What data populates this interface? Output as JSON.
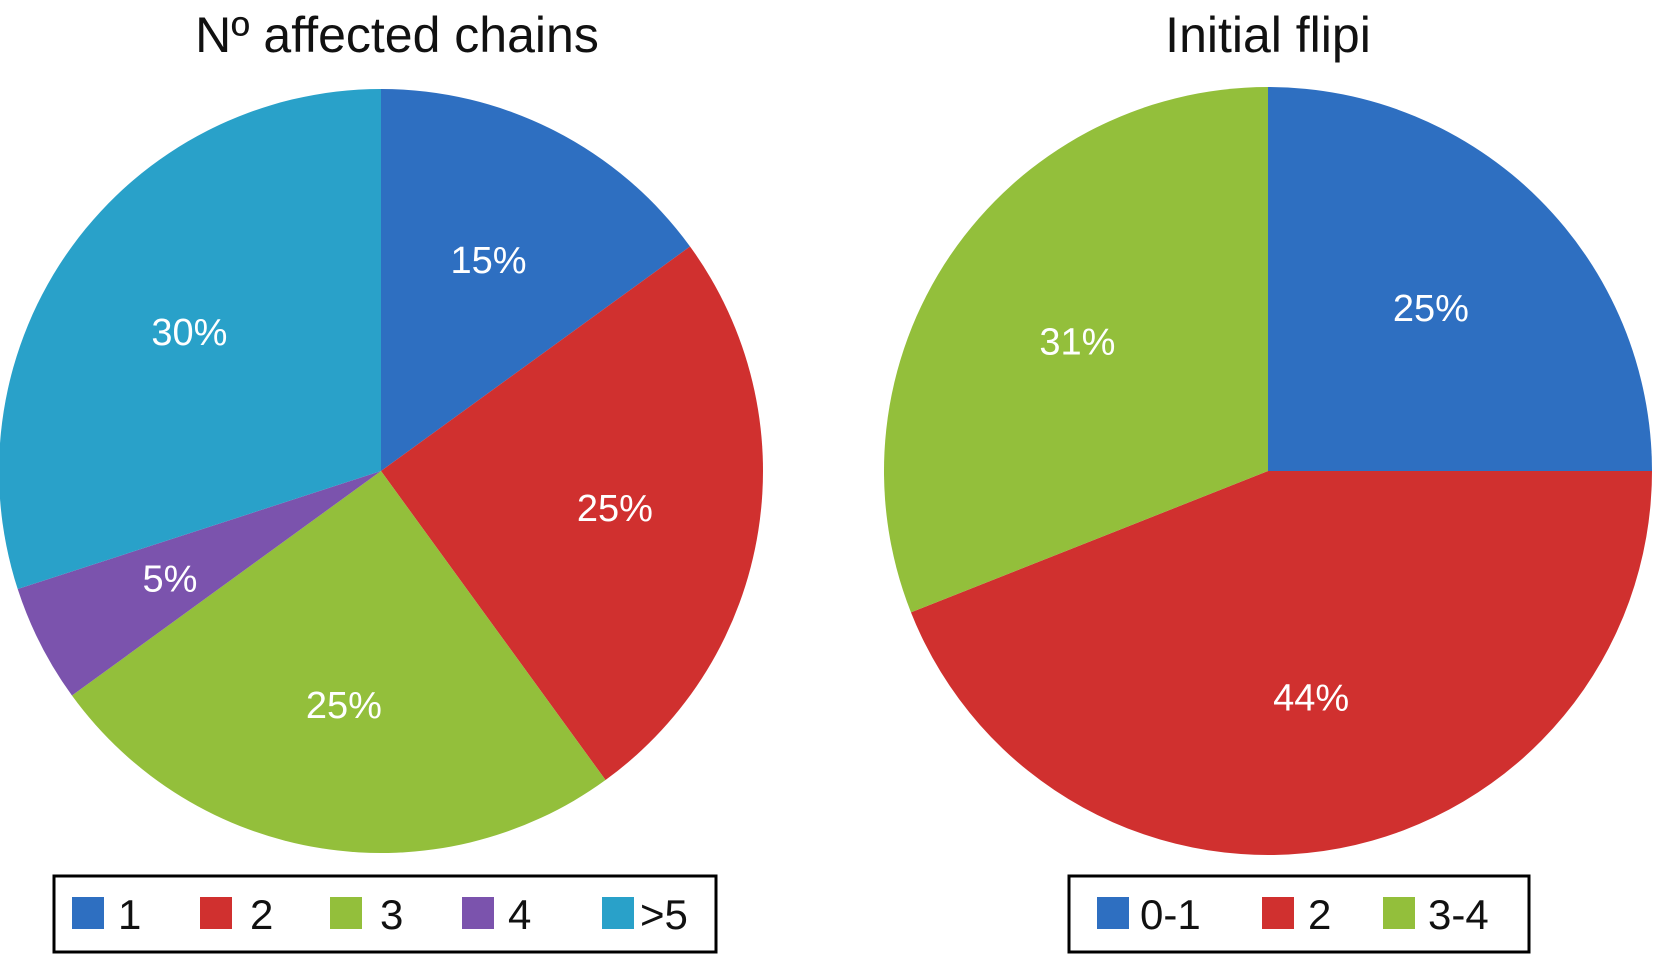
{
  "chart_data": [
    {
      "type": "pie",
      "title": "Nº affected chains",
      "categories": [
        "1",
        "2",
        "3",
        "4",
        ">5"
      ],
      "values": [
        15,
        25,
        25,
        5,
        30
      ],
      "labels": [
        "15%",
        "25%",
        "25%",
        "5%",
        "30%"
      ],
      "colors": [
        "#2e6fc1",
        "#d0302f",
        "#93bf3b",
        "#7b53ad",
        "#29a1c9"
      ],
      "start_angle_deg": 0,
      "direction": "clockwise",
      "legend_position": "bottom"
    },
    {
      "type": "pie",
      "title": "Initial flipi",
      "categories": [
        "0-1",
        "2",
        "3-4"
      ],
      "values": [
        25,
        44,
        31
      ],
      "labels": [
        "25%",
        "44%",
        "31%"
      ],
      "colors": [
        "#2e6fc1",
        "#d0302f",
        "#93bf3b"
      ],
      "start_angle_deg": 0,
      "direction": "clockwise",
      "legend_position": "bottom"
    }
  ]
}
